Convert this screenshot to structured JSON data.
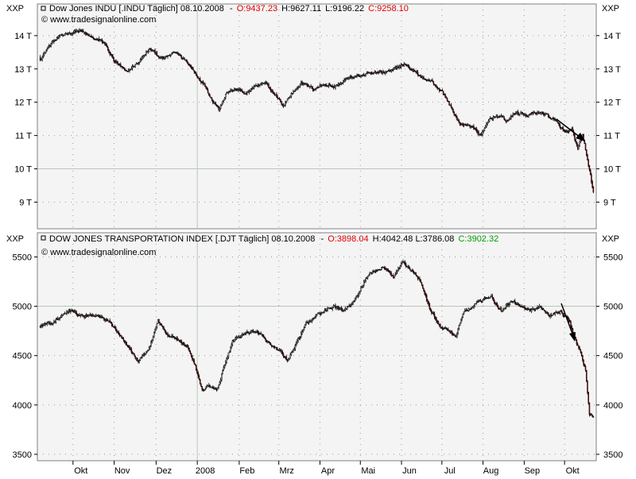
{
  "colors": {
    "background": "#ffffff",
    "plot_background": "#f4f4f4",
    "up_candle": "#ffffff",
    "down_candle": "#c00000",
    "wick": "#000000",
    "open_red": "#e00000",
    "close_green": "#00a000",
    "grid_dots": "#9a9a9a",
    "separator": "#b8c8b8"
  },
  "chart_data": [
    {
      "type": "candlestick",
      "panel": "top",
      "axis_label_left": "XXP",
      "axis_label_right": "XXP",
      "legend": {
        "name": "Dow Jones INDU [.INDU Täglich] 08.10.2008",
        "open_label": "O:9437.23",
        "high_label": "H:9627.11",
        "low_label": "L:9196.22",
        "close_label": "C:9258.10"
      },
      "watermark": "© www.tradesignalonline.com",
      "y_ticks": [
        {
          "v": 14000,
          "label": "14 T"
        },
        {
          "v": 13000,
          "label": "13 T"
        },
        {
          "v": 12000,
          "label": "12 T"
        },
        {
          "v": 11000,
          "label": "11 T"
        },
        {
          "v": 10000,
          "label": "10 T"
        },
        {
          "v": 9000,
          "label": "9 T"
        }
      ],
      "ylim": [
        8200,
        14950
      ],
      "separator_value": 10000,
      "start": 13350,
      "anchors": [
        [
          0,
          13300
        ],
        [
          12,
          13800
        ],
        [
          25,
          14050
        ],
        [
          40,
          14150
        ],
        [
          55,
          13900
        ],
        [
          65,
          13800
        ],
        [
          75,
          13250
        ],
        [
          88,
          12900
        ],
        [
          100,
          13200
        ],
        [
          112,
          13600
        ],
        [
          125,
          13300
        ],
        [
          138,
          13500
        ],
        [
          150,
          13200
        ],
        [
          160,
          12800
        ],
        [
          168,
          12500
        ],
        [
          175,
          12100
        ],
        [
          182,
          11800
        ],
        [
          190,
          12300
        ],
        [
          200,
          12400
        ],
        [
          210,
          12250
        ],
        [
          220,
          12500
        ],
        [
          230,
          12550
        ],
        [
          240,
          12200
        ],
        [
          248,
          11900
        ],
        [
          256,
          12250
        ],
        [
          266,
          12600
        ],
        [
          278,
          12400
        ],
        [
          290,
          12550
        ],
        [
          300,
          12450
        ],
        [
          312,
          12700
        ],
        [
          325,
          12800
        ],
        [
          338,
          12850
        ],
        [
          350,
          12900
        ],
        [
          360,
          13000
        ],
        [
          372,
          13150
        ],
        [
          382,
          12900
        ],
        [
          392,
          12700
        ],
        [
          400,
          12600
        ],
        [
          410,
          12300
        ],
        [
          420,
          11800
        ],
        [
          428,
          11300
        ],
        [
          436,
          11350
        ],
        [
          444,
          11150
        ],
        [
          450,
          11000
        ],
        [
          458,
          11500
        ],
        [
          466,
          11600
        ],
        [
          476,
          11450
        ],
        [
          486,
          11700
        ],
        [
          496,
          11600
        ],
        [
          506,
          11700
        ],
        [
          516,
          11650
        ],
        [
          526,
          11400
        ],
        [
          535,
          11100
        ],
        [
          542,
          11150
        ],
        [
          548,
          10600
        ],
        [
          553,
          11050
        ],
        [
          557,
          10400
        ],
        [
          561,
          9800
        ],
        [
          564,
          9300
        ]
      ]
    },
    {
      "type": "candlestick",
      "panel": "bottom",
      "axis_label_left": "XXP",
      "axis_label_right": "XXP",
      "legend": {
        "name": "DOW JONES TRANSPORTATION INDEX [.DJT Täglich] 08.10.2008",
        "open_label": "O:3898.04",
        "high_label": "H:4042.48 L:3786.08",
        "close_label": "C:3902.32"
      },
      "watermark": "© www.tradesignalonline.com",
      "y_ticks": [
        {
          "v": 5500,
          "label": "5500"
        },
        {
          "v": 5000,
          "label": "5000"
        },
        {
          "v": 4500,
          "label": "4500"
        },
        {
          "v": 4000,
          "label": "4000"
        },
        {
          "v": 3500,
          "label": "3500"
        }
      ],
      "ylim": [
        3435,
        5745
      ],
      "separator_value": 5000,
      "start": 4800,
      "anchors": [
        [
          0,
          4800
        ],
        [
          15,
          4850
        ],
        [
          30,
          4950
        ],
        [
          45,
          4900
        ],
        [
          60,
          4900
        ],
        [
          75,
          4800
        ],
        [
          88,
          4600
        ],
        [
          100,
          4450
        ],
        [
          110,
          4550
        ],
        [
          120,
          4850
        ],
        [
          130,
          4700
        ],
        [
          140,
          4650
        ],
        [
          150,
          4600
        ],
        [
          158,
          4400
        ],
        [
          165,
          4150
        ],
        [
          172,
          4200
        ],
        [
          180,
          4150
        ],
        [
          188,
          4400
        ],
        [
          196,
          4650
        ],
        [
          206,
          4700
        ],
        [
          216,
          4750
        ],
        [
          226,
          4700
        ],
        [
          236,
          4600
        ],
        [
          245,
          4550
        ],
        [
          252,
          4450
        ],
        [
          260,
          4600
        ],
        [
          270,
          4800
        ],
        [
          280,
          4900
        ],
        [
          290,
          4950
        ],
        [
          300,
          5000
        ],
        [
          310,
          4950
        ],
        [
          320,
          5050
        ],
        [
          330,
          5250
        ],
        [
          340,
          5350
        ],
        [
          350,
          5400
        ],
        [
          360,
          5300
        ],
        [
          370,
          5450
        ],
        [
          380,
          5350
        ],
        [
          388,
          5250
        ],
        [
          398,
          4950
        ],
        [
          408,
          4800
        ],
        [
          416,
          4750
        ],
        [
          424,
          4700
        ],
        [
          432,
          4950
        ],
        [
          440,
          5000
        ],
        [
          450,
          5050
        ],
        [
          460,
          5100
        ],
        [
          470,
          4950
        ],
        [
          480,
          5050
        ],
        [
          490,
          5000
        ],
        [
          500,
          4950
        ],
        [
          510,
          5000
        ],
        [
          520,
          4900
        ],
        [
          530,
          4950
        ],
        [
          540,
          4850
        ],
        [
          546,
          4650
        ],
        [
          552,
          4500
        ],
        [
          556,
          4350
        ],
        [
          560,
          3900
        ],
        [
          564,
          3880
        ]
      ]
    }
  ],
  "x_axis": {
    "total_days": 566,
    "labels": [
      {
        "label": "Okt",
        "day": 42
      },
      {
        "label": "Nov",
        "day": 94
      },
      {
        "label": "Dez",
        "day": 147
      },
      {
        "label": "2008",
        "day": 199
      },
      {
        "label": "Feb",
        "day": 252
      },
      {
        "label": "Mrz",
        "day": 302
      },
      {
        "label": "Apr",
        "day": 354
      },
      {
        "label": "Mai",
        "day": 405
      },
      {
        "label": "Jun",
        "day": 457
      },
      {
        "label": "Jul",
        "day": 508
      },
      {
        "label": "Aug",
        "day": 560
      },
      {
        "label": "Sep",
        "day": 612
      },
      {
        "label": "Okt",
        "day": 663
      }
    ],
    "year_marker_day": 199
  }
}
